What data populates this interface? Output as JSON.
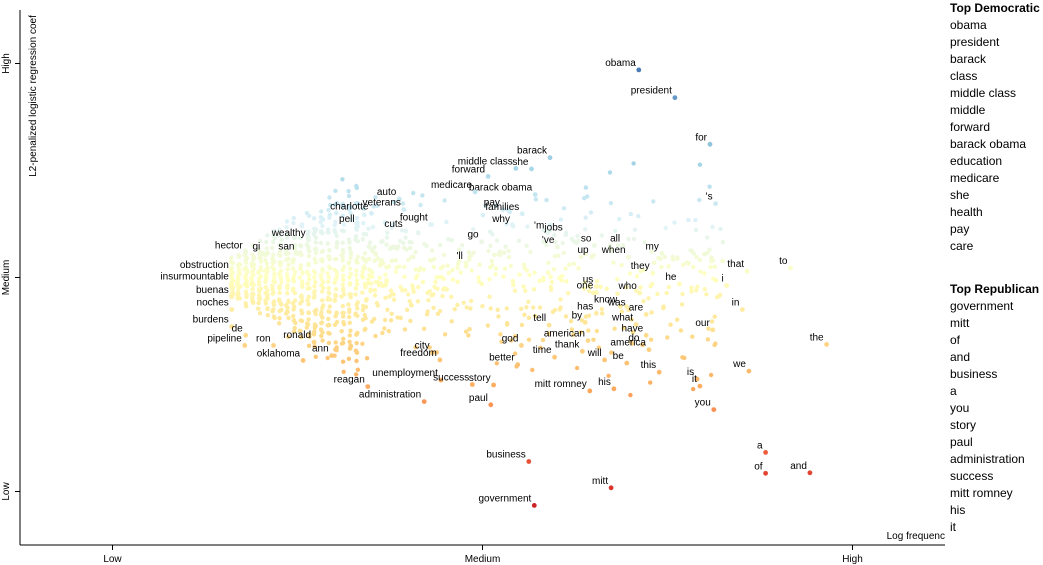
{
  "chart_data": {
    "type": "scatter",
    "xlabel": "Log frequency",
    "ylabel": "L2-penalized logistic regression coef",
    "xlim": [
      0,
      1
    ],
    "ylim": [
      0,
      1
    ],
    "x_ticks": [
      {
        "value": 0.1,
        "label": "Low"
      },
      {
        "value": 0.5,
        "label": "Medium"
      },
      {
        "value": 0.9,
        "label": "High"
      }
    ],
    "y_ticks": [
      {
        "value": 0.1,
        "label": "Low"
      },
      {
        "value": 0.5,
        "label": "Medium"
      },
      {
        "value": 0.9,
        "label": "High"
      }
    ],
    "color_scale": [
      "#a50026",
      "#d73027",
      "#f46d43",
      "#fdae61",
      "#fee090",
      "#ffffbf",
      "#e0f3f8",
      "#abd9e9",
      "#74add1",
      "#4575b4",
      "#313695"
    ],
    "labeled_points": [
      {
        "term": "obama",
        "x": 0.669,
        "y": 0.888
      },
      {
        "term": "president",
        "x": 0.708,
        "y": 0.836
      },
      {
        "term": "for",
        "x": 0.746,
        "y": 0.749
      },
      {
        "term": "barack",
        "x": 0.573,
        "y": 0.724
      },
      {
        "term": "middle class",
        "x": 0.536,
        "y": 0.704
      },
      {
        "term": "forward",
        "x": 0.506,
        "y": 0.689
      },
      {
        "term": "she",
        "x": 0.553,
        "y": 0.703
      },
      {
        "term": "barack obama",
        "x": 0.557,
        "y": 0.655
      },
      {
        "term": "medicare",
        "x": 0.492,
        "y": 0.66
      },
      {
        "term": "'s",
        "x": 0.752,
        "y": 0.638
      },
      {
        "term": "pay",
        "x": 0.522,
        "y": 0.627
      },
      {
        "term": "families",
        "x": 0.543,
        "y": 0.619
      },
      {
        "term": "auto",
        "x": 0.41,
        "y": 0.647
      },
      {
        "term": "veterans",
        "x": 0.415,
        "y": 0.627
      },
      {
        "term": "charlotte",
        "x": 0.38,
        "y": 0.62
      },
      {
        "term": "fought",
        "x": 0.444,
        "y": 0.599
      },
      {
        "term": "pell",
        "x": 0.365,
        "y": 0.596
      },
      {
        "term": "why",
        "x": 0.533,
        "y": 0.596
      },
      {
        "term": "'m",
        "x": 0.57,
        "y": 0.584
      },
      {
        "term": "jobs",
        "x": 0.59,
        "y": 0.58
      },
      {
        "term": "cuts",
        "x": 0.417,
        "y": 0.587
      },
      {
        "term": "wealthy",
        "x": 0.312,
        "y": 0.57
      },
      {
        "term": "go",
        "x": 0.499,
        "y": 0.567
      },
      {
        "term": "'ve",
        "x": 0.581,
        "y": 0.557
      },
      {
        "term": "so",
        "x": 0.621,
        "y": 0.56
      },
      {
        "term": "all",
        "x": 0.652,
        "y": 0.56
      },
      {
        "term": "my",
        "x": 0.694,
        "y": 0.545
      },
      {
        "term": "up",
        "x": 0.618,
        "y": 0.538
      },
      {
        "term": "when",
        "x": 0.658,
        "y": 0.538
      },
      {
        "term": "hector",
        "x": 0.244,
        "y": 0.547
      },
      {
        "term": "gi",
        "x": 0.263,
        "y": 0.545
      },
      {
        "term": "san",
        "x": 0.3,
        "y": 0.545
      },
      {
        "term": "'ll",
        "x": 0.482,
        "y": 0.527
      },
      {
        "term": "that",
        "x": 0.786,
        "y": 0.512
      },
      {
        "term": "to",
        "x": 0.833,
        "y": 0.518
      },
      {
        "term": "they",
        "x": 0.684,
        "y": 0.508
      },
      {
        "term": "obstruction",
        "x": 0.229,
        "y": 0.51
      },
      {
        "term": "he",
        "x": 0.713,
        "y": 0.488
      },
      {
        "term": "us",
        "x": 0.623,
        "y": 0.483
      },
      {
        "term": "i",
        "x": 0.764,
        "y": 0.485
      },
      {
        "term": "insurmountable",
        "x": 0.229,
        "y": 0.489
      },
      {
        "term": "one",
        "x": 0.623,
        "y": 0.472
      },
      {
        "term": "who",
        "x": 0.67,
        "y": 0.471
      },
      {
        "term": "buenas",
        "x": 0.229,
        "y": 0.464
      },
      {
        "term": "know",
        "x": 0.649,
        "y": 0.446
      },
      {
        "term": "in",
        "x": 0.781,
        "y": 0.44
      },
      {
        "term": "was",
        "x": 0.658,
        "y": 0.44
      },
      {
        "term": "noches",
        "x": 0.229,
        "y": 0.44
      },
      {
        "term": "has",
        "x": 0.623,
        "y": 0.433
      },
      {
        "term": "are",
        "x": 0.677,
        "y": 0.431
      },
      {
        "term": "by",
        "x": 0.611,
        "y": 0.416
      },
      {
        "term": "what",
        "x": 0.666,
        "y": 0.412
      },
      {
        "term": "tell",
        "x": 0.572,
        "y": 0.411
      },
      {
        "term": "our",
        "x": 0.749,
        "y": 0.402
      },
      {
        "term": "burdens",
        "x": 0.229,
        "y": 0.408
      },
      {
        "term": "de",
        "x": 0.244,
        "y": 0.392
      },
      {
        "term": "have",
        "x": 0.677,
        "y": 0.392
      },
      {
        "term": "the",
        "x": 0.872,
        "y": 0.375
      },
      {
        "term": "american",
        "x": 0.614,
        "y": 0.382
      },
      {
        "term": "do",
        "x": 0.673,
        "y": 0.374
      },
      {
        "term": "pipeline",
        "x": 0.243,
        "y": 0.373
      },
      {
        "term": "ronald",
        "x": 0.318,
        "y": 0.379
      },
      {
        "term": "ron",
        "x": 0.274,
        "y": 0.373
      },
      {
        "term": "god",
        "x": 0.542,
        "y": 0.373
      },
      {
        "term": "thank",
        "x": 0.608,
        "y": 0.362
      },
      {
        "term": "america",
        "x": 0.68,
        "y": 0.365
      },
      {
        "term": "ann",
        "x": 0.337,
        "y": 0.354
      },
      {
        "term": "city",
        "x": 0.446,
        "y": 0.36
      },
      {
        "term": "time",
        "x": 0.578,
        "y": 0.351
      },
      {
        "term": "will",
        "x": 0.632,
        "y": 0.346
      },
      {
        "term": "oklahoma",
        "x": 0.306,
        "y": 0.345
      },
      {
        "term": "freedom",
        "x": 0.454,
        "y": 0.346
      },
      {
        "term": "be",
        "x": 0.656,
        "y": 0.34
      },
      {
        "term": "better",
        "x": 0.538,
        "y": 0.337
      },
      {
        "term": "we",
        "x": 0.788,
        "y": 0.325
      },
      {
        "term": "this",
        "x": 0.691,
        "y": 0.323
      },
      {
        "term": "is",
        "x": 0.732,
        "y": 0.31
      },
      {
        "term": "unemployment",
        "x": 0.455,
        "y": 0.308
      },
      {
        "term": "reagan",
        "x": 0.376,
        "y": 0.296
      },
      {
        "term": "success",
        "x": 0.489,
        "y": 0.3
      },
      {
        "term": "story",
        "x": 0.512,
        "y": 0.299
      },
      {
        "term": "it",
        "x": 0.735,
        "y": 0.297
      },
      {
        "term": "his",
        "x": 0.642,
        "y": 0.292
      },
      {
        "term": "mitt romney",
        "x": 0.616,
        "y": 0.288
      },
      {
        "term": "administration",
        "x": 0.437,
        "y": 0.268
      },
      {
        "term": "paul",
        "x": 0.509,
        "y": 0.262
      },
      {
        "term": "you",
        "x": 0.75,
        "y": 0.253
      },
      {
        "term": "a",
        "x": 0.806,
        "y": 0.173
      },
      {
        "term": "business",
        "x": 0.55,
        "y": 0.156
      },
      {
        "term": "of",
        "x": 0.806,
        "y": 0.134
      },
      {
        "term": "and",
        "x": 0.854,
        "y": 0.135
      },
      {
        "term": "mitt",
        "x": 0.639,
        "y": 0.107
      },
      {
        "term": "government",
        "x": 0.556,
        "y": 0.074
      }
    ],
    "top_democratic": [
      "obama",
      "president",
      "barack",
      "class",
      "middle class",
      "middle",
      "forward",
      "barack obama",
      "education",
      "medicare",
      "she",
      "health",
      "pay",
      "care"
    ],
    "top_republican": [
      "government",
      "mitt",
      "of",
      "and",
      "business",
      "a",
      "you",
      "story",
      "paul",
      "administration",
      "success",
      "mitt romney",
      "his",
      "it"
    ]
  },
  "legend": {
    "democratic_title": "Top Democratic",
    "republican_title": "Top Republican"
  }
}
